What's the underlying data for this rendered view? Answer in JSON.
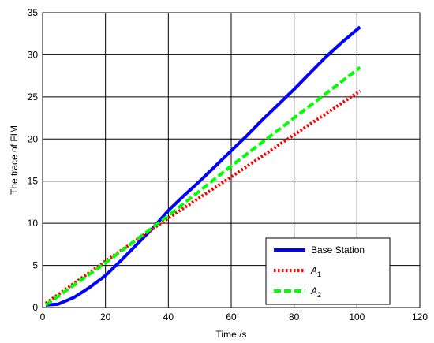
{
  "chart_data": {
    "type": "line",
    "xlabel": "Time /s",
    "ylabel": "The trace of FIM",
    "xlim": [
      0,
      120
    ],
    "ylim": [
      0,
      35
    ],
    "xticks": [
      0,
      20,
      40,
      60,
      80,
      100,
      120
    ],
    "yticks": [
      0,
      5,
      10,
      15,
      20,
      25,
      30,
      35
    ],
    "grid": true,
    "legend_position": "bottom-right",
    "series": [
      {
        "name": "Base Station",
        "legend_main": "Base Station",
        "legend_sub": "",
        "color": "#0000ff",
        "style": "solid",
        "x": [
          1,
          5,
          10,
          15,
          20,
          25,
          30,
          35,
          40,
          45,
          50,
          55,
          60,
          65,
          70,
          75,
          80,
          85,
          90,
          95,
          101
        ],
        "y": [
          0.3,
          0.4,
          1.2,
          2.4,
          3.8,
          5.6,
          7.5,
          9.4,
          11.5,
          13.3,
          15.0,
          16.8,
          18.6,
          20.4,
          22.3,
          24.1,
          25.9,
          27.8,
          29.7,
          31.4,
          33.3
        ]
      },
      {
        "name": "A1",
        "legend_main": "A",
        "legend_sub": "1",
        "color": "#ff0000",
        "style": "dotted",
        "x": [
          1,
          20,
          40,
          60,
          80,
          101
        ],
        "y": [
          0.5,
          5.5,
          10.6,
          15.5,
          20.5,
          25.7
        ]
      },
      {
        "name": "A2",
        "legend_main": "A",
        "legend_sub": "2",
        "color": "#00ff00",
        "style": "dashed",
        "x": [
          1,
          20,
          40,
          60,
          80,
          101
        ],
        "y": [
          0.3,
          5.3,
          10.9,
          16.8,
          22.5,
          28.5
        ]
      }
    ]
  }
}
